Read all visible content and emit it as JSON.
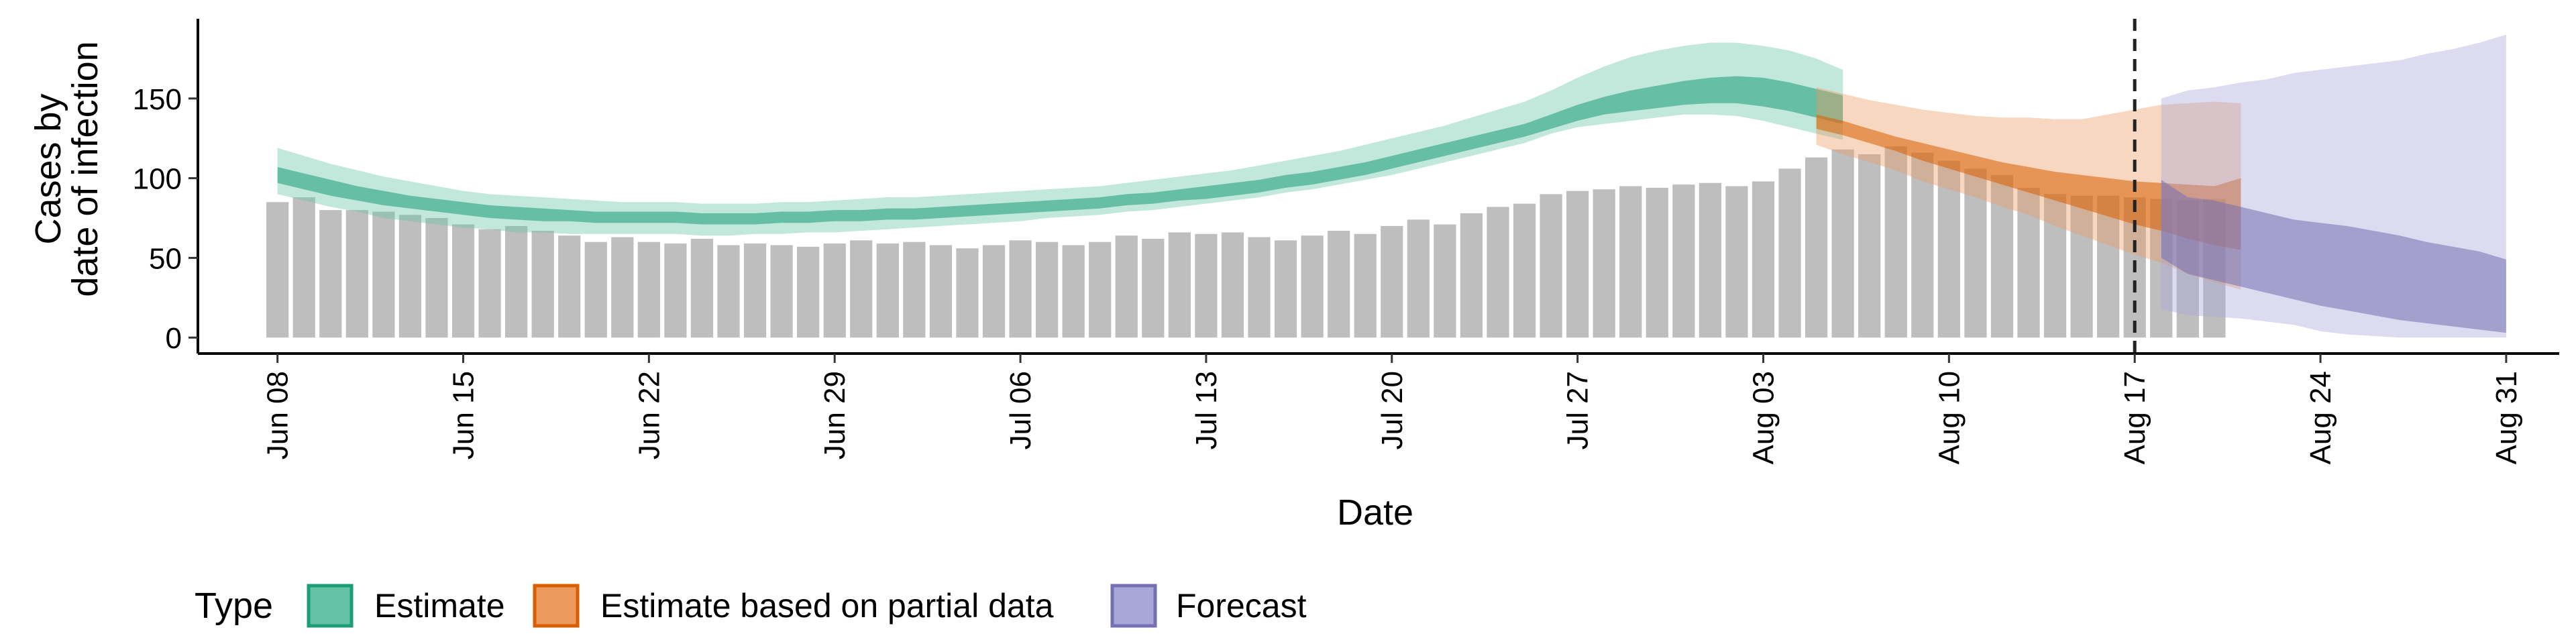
{
  "chart_data": {
    "type": "bar",
    "xlabel": "Date",
    "ylabel_line1": "Cases by",
    "ylabel_line2": "date of infection",
    "y_ticks": [
      0,
      50,
      100,
      150
    ],
    "ylim": [
      -10,
      200
    ],
    "x_range": [
      "2020-06-05",
      "2020-09-02"
    ],
    "x_ticks": [
      {
        "date": "2020-06-08",
        "label": "Jun 08"
      },
      {
        "date": "2020-06-15",
        "label": "Jun 15"
      },
      {
        "date": "2020-06-22",
        "label": "Jun 22"
      },
      {
        "date": "2020-06-29",
        "label": "Jun 29"
      },
      {
        "date": "2020-07-06",
        "label": "Jul 06"
      },
      {
        "date": "2020-07-13",
        "label": "Jul 13"
      },
      {
        "date": "2020-07-20",
        "label": "Jul 20"
      },
      {
        "date": "2020-07-27",
        "label": "Jul 27"
      },
      {
        "date": "2020-08-03",
        "label": "Aug 03"
      },
      {
        "date": "2020-08-10",
        "label": "Aug 10"
      },
      {
        "date": "2020-08-17",
        "label": "Aug 17"
      },
      {
        "date": "2020-08-24",
        "label": "Aug 24"
      },
      {
        "date": "2020-08-31",
        "label": "Aug 31"
      }
    ],
    "vline_date": "2020-08-17",
    "grid": false,
    "legend": {
      "title": "Type",
      "position": "bottom",
      "items": [
        {
          "label": "Estimate",
          "fill": "#66c2a5",
          "stroke": "#1b9e77"
        },
        {
          "label": "Estimate based on partial data",
          "fill": "#ec9a5e",
          "stroke": "#d95f02"
        },
        {
          "label": "Forecast",
          "fill": "#a9a6d8",
          "stroke": "#7570b3"
        }
      ]
    },
    "bars": {
      "color": "#bebebe",
      "start_date": "2020-06-08",
      "values": [
        85,
        88,
        80,
        80,
        79,
        77,
        75,
        71,
        68,
        70,
        67,
        64,
        60,
        63,
        60,
        59,
        62,
        58,
        59,
        58,
        57,
        59,
        61,
        59,
        60,
        58,
        56,
        58,
        61,
        60,
        58,
        60,
        64,
        62,
        66,
        65,
        66,
        63,
        61,
        64,
        67,
        65,
        70,
        74,
        71,
        78,
        82,
        84,
        90,
        92,
        93,
        95,
        94,
        96,
        97,
        95,
        98,
        106,
        113,
        118,
        115,
        120,
        116,
        111,
        106,
        102,
        94,
        90,
        89,
        89,
        88,
        87,
        86,
        87
      ]
    },
    "bands": [
      {
        "type": "Estimate",
        "color_outer": "#66c2a5",
        "color_inner": "#1b9e77",
        "start_date": "2020-06-08",
        "outer_lo": [
          90,
          86,
          82,
          79,
          75,
          73,
          71,
          69,
          68,
          66,
          66,
          65,
          65,
          65,
          65,
          65,
          64,
          64,
          65,
          65,
          66,
          66,
          67,
          68,
          69,
          70,
          71,
          72,
          73,
          75,
          76,
          77,
          79,
          80,
          82,
          84,
          86,
          88,
          91,
          93,
          96,
          99,
          102,
          106,
          110,
          114,
          118,
          122,
          128,
          132,
          134,
          136,
          138,
          140,
          140,
          139,
          136,
          132,
          128,
          124
        ],
        "inner_lo": [
          97,
          93,
          89,
          86,
          83,
          81,
          79,
          77,
          75,
          74,
          73,
          73,
          72,
          72,
          72,
          72,
          71,
          71,
          71,
          72,
          72,
          73,
          73,
          74,
          74,
          75,
          76,
          77,
          78,
          79,
          80,
          81,
          83,
          84,
          86,
          87,
          89,
          91,
          94,
          96,
          99,
          102,
          106,
          110,
          114,
          118,
          122,
          126,
          131,
          136,
          140,
          142,
          144,
          146,
          147,
          147,
          145,
          142,
          138,
          134
        ],
        "inner_hi": [
          107,
          103,
          99,
          95,
          92,
          89,
          87,
          85,
          83,
          82,
          81,
          80,
          79,
          79,
          79,
          79,
          78,
          78,
          78,
          79,
          79,
          80,
          80,
          81,
          81,
          82,
          83,
          84,
          85,
          86,
          87,
          88,
          90,
          91,
          93,
          95,
          97,
          99,
          102,
          104,
          107,
          110,
          114,
          118,
          122,
          126,
          130,
          134,
          140,
          146,
          151,
          155,
          158,
          161,
          163,
          164,
          163,
          160,
          156,
          152
        ],
        "outer_hi": [
          119,
          114,
          109,
          105,
          101,
          98,
          95,
          92,
          90,
          89,
          88,
          87,
          86,
          85,
          85,
          85,
          84,
          84,
          84,
          85,
          85,
          86,
          87,
          88,
          88,
          89,
          90,
          91,
          92,
          93,
          94,
          95,
          97,
          99,
          101,
          103,
          105,
          108,
          111,
          114,
          117,
          121,
          125,
          129,
          133,
          138,
          143,
          148,
          155,
          163,
          170,
          176,
          180,
          183,
          185,
          185,
          183,
          180,
          175,
          168
        ]
      },
      {
        "type": "Estimate based on partial data",
        "color_outer": "#ec9a5e",
        "color_inner": "#d95f02",
        "start_date": "2020-08-05",
        "outer_lo": [
          121,
          115,
          110,
          105,
          98,
          93,
          88,
          82,
          77,
          70,
          64,
          58,
          52,
          47,
          40,
          35,
          30
        ],
        "inner_lo": [
          131,
          127,
          122,
          117,
          111,
          106,
          101,
          96,
          91,
          86,
          81,
          76,
          71,
          67,
          62,
          58,
          55
        ],
        "inner_hi": [
          140,
          136,
          131,
          126,
          122,
          118,
          114,
          110,
          107,
          104,
          102,
          100,
          98,
          97,
          96,
          95,
          100
        ],
        "outer_hi": [
          157,
          153,
          149,
          146,
          143,
          141,
          139,
          138,
          138,
          137,
          137,
          140,
          143,
          146,
          147,
          148,
          147
        ]
      },
      {
        "type": "Forecast",
        "color_outer": "#a9a6d8",
        "color_inner": "#7570b3",
        "start_date": "2020-08-18",
        "outer_lo": [
          18,
          14,
          13,
          12,
          10,
          8,
          4,
          2,
          1,
          0,
          0,
          0,
          0,
          0
        ],
        "inner_lo": [
          50,
          40,
          36,
          32,
          28,
          24,
          20,
          17,
          14,
          11,
          9,
          7,
          5,
          3
        ],
        "inner_hi": [
          99,
          88,
          86,
          82,
          78,
          74,
          72,
          70,
          67,
          64,
          60,
          57,
          54,
          49
        ],
        "outer_hi": [
          150,
          155,
          157,
          160,
          162,
          166,
          168,
          170,
          172,
          174,
          178,
          181,
          185,
          190
        ]
      }
    ]
  }
}
